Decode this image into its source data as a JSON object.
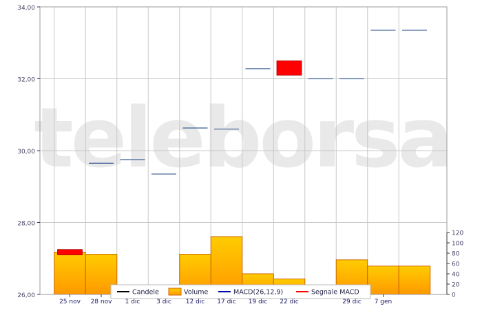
{
  "watermark": "teleborsa",
  "colors": {
    "grid": "#c8c8c8",
    "frame": "#9a9a9a",
    "axis_text": "#444466",
    "date_text": "#1a1a66",
    "candle_line": "#4a6a9a",
    "candle_red": "#ff0000",
    "volume_top": "#ffcc00",
    "volume_bottom": "#ff9900",
    "volume_stroke": "#cc6600",
    "watermark": "#e9e9e9"
  },
  "chart_data": {
    "type": "candlestick",
    "price_axis": {
      "range": [
        26.0,
        34.0
      ],
      "ticks": [
        {
          "value": 26,
          "label": "26,00"
        },
        {
          "value": 28,
          "label": "28,00"
        },
        {
          "value": 30,
          "label": "30,00"
        },
        {
          "value": 32,
          "label": "32,00"
        },
        {
          "value": 34,
          "label": "34,00"
        }
      ]
    },
    "volume_axis": {
      "range": [
        0,
        120
      ],
      "ticks": [
        {
          "value": 0,
          "label": "0"
        },
        {
          "value": 20,
          "label": "20"
        },
        {
          "value": 40,
          "label": "40"
        },
        {
          "value": 60,
          "label": "60"
        },
        {
          "value": 80,
          "label": "80"
        },
        {
          "value": 100,
          "label": "100"
        },
        {
          "value": 120,
          "label": "120"
        }
      ]
    },
    "x_labels": [
      {
        "slot": 1,
        "label": "25 nov"
      },
      {
        "slot": 2,
        "label": "28 nov"
      },
      {
        "slot": 3,
        "label": "1 dic"
      },
      {
        "slot": 4,
        "label": "3 dic"
      },
      {
        "slot": 5,
        "label": "12 dic"
      },
      {
        "slot": 6,
        "label": "17 dic"
      },
      {
        "slot": 7,
        "label": "19 dic"
      },
      {
        "slot": 8,
        "label": "22 dic"
      },
      {
        "slot": 10,
        "label": "29 dic"
      },
      {
        "slot": 11,
        "label": "7 gen"
      }
    ],
    "candles": [
      {
        "slot": 1,
        "open": 27.25,
        "close": 27.1
      },
      {
        "slot": 2,
        "open": 29.65,
        "close": 29.65
      },
      {
        "slot": 3,
        "open": 29.75,
        "close": 29.75
      },
      {
        "slot": 4,
        "open": 29.35,
        "close": 29.35
      },
      {
        "slot": 5,
        "open": 30.63,
        "close": 30.63
      },
      {
        "slot": 6,
        "open": 30.6,
        "close": 30.6
      },
      {
        "slot": 7,
        "open": 32.28,
        "close": 32.28
      },
      {
        "slot": 8,
        "open": 32.5,
        "close": 32.1
      },
      {
        "slot": 9,
        "open": 32.0,
        "close": 32.0
      },
      {
        "slot": 10,
        "open": 32.0,
        "close": 32.0
      },
      {
        "slot": 11,
        "open": 33.35,
        "close": 33.35
      },
      {
        "slot": 12,
        "open": 33.35,
        "close": 33.35
      }
    ],
    "volumes": [
      {
        "slot": 1,
        "value": 82
      },
      {
        "slot": 2,
        "value": 78
      },
      {
        "slot": 5,
        "value": 78
      },
      {
        "slot": 6,
        "value": 112
      },
      {
        "slot": 7,
        "value": 40
      },
      {
        "slot": 8,
        "value": 30
      },
      {
        "slot": 10,
        "value": 67
      },
      {
        "slot": 11,
        "value": 55
      },
      {
        "slot": 12,
        "value": 55
      }
    ],
    "legend": {
      "position": "bottom",
      "items": [
        {
          "label": "Candele",
          "kind": "line",
          "color": "#000000"
        },
        {
          "label": "Volume",
          "kind": "box",
          "color": "#ffbb00"
        },
        {
          "label": "MACD(26,12,9)",
          "kind": "line",
          "color": "#0000aa"
        },
        {
          "label": "Segnale MACD",
          "kind": "line",
          "color": "#ff0000"
        }
      ]
    },
    "grid": true
  }
}
